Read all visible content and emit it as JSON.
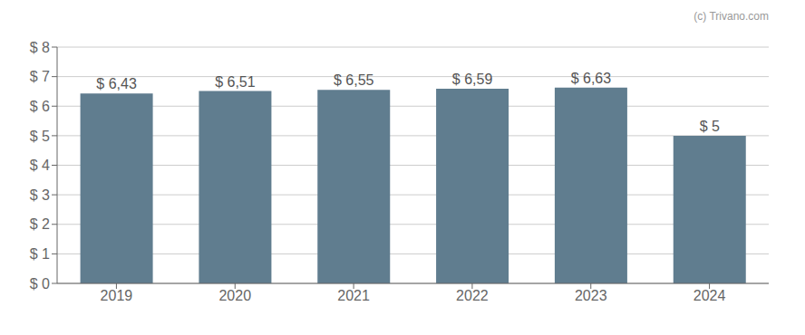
{
  "chart_data": {
    "type": "bar",
    "categories": [
      "2019",
      "2020",
      "2021",
      "2022",
      "2023",
      "2024"
    ],
    "values": [
      6.43,
      6.51,
      6.55,
      6.59,
      6.63,
      5.0
    ],
    "value_labels": [
      "$ 6,43",
      "$ 6,51",
      "$ 6,55",
      "$ 6,59",
      "$ 6,63",
      "$ 5"
    ],
    "data_labels": true,
    "color": "#607d8f",
    "ylim": [
      0,
      8
    ],
    "yticks": [
      {
        "value": 0,
        "label": "$ 0"
      },
      {
        "value": 1,
        "label": "$ 1"
      },
      {
        "value": 2,
        "label": "$ 2"
      },
      {
        "value": 3,
        "label": "$ 3"
      },
      {
        "value": 4,
        "label": "$ 4"
      },
      {
        "value": 5,
        "label": "$ 5"
      },
      {
        "value": 6,
        "label": "$ 6"
      },
      {
        "value": 7,
        "label": "$ 7"
      },
      {
        "value": 8,
        "label": "$ 8"
      }
    ],
    "grid": true,
    "annotations": [
      "(c) Trivano.com"
    ]
  }
}
